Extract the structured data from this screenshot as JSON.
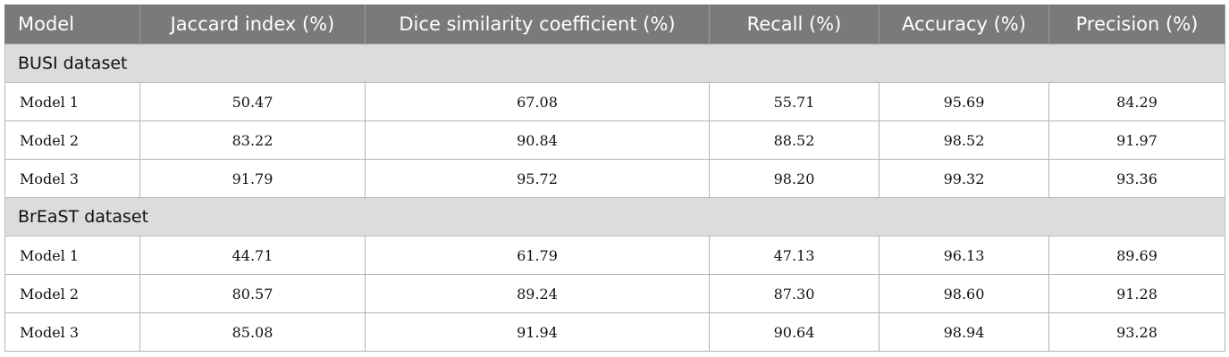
{
  "columns": [
    "Model",
    "Jaccard index (%)",
    "Dice similarity coefficient (%)",
    "Recall (%)",
    "Accuracy (%)",
    "Precision (%)"
  ],
  "sections": [
    {
      "title": "BUSI dataset",
      "rows": [
        [
          "Model 1",
          "50.47",
          "67.08",
          "55.71",
          "95.69",
          "84.29"
        ],
        [
          "Model 2",
          "83.22",
          "90.84",
          "88.52",
          "98.52",
          "91.97"
        ],
        [
          "Model 3",
          "91.79",
          "95.72",
          "98.20",
          "99.32",
          "93.36"
        ]
      ]
    },
    {
      "title": "BrEaST dataset",
      "rows": [
        [
          "Model 1",
          "44.71",
          "61.79",
          "47.13",
          "96.13",
          "89.69"
        ],
        [
          "Model 2",
          "80.57",
          "89.24",
          "87.30",
          "98.60",
          "91.28"
        ],
        [
          "Model 3",
          "85.08",
          "91.94",
          "90.64",
          "98.94",
          "93.28"
        ]
      ]
    }
  ],
  "colors": {
    "header_bg": "#7a7a7a",
    "section_bg": "#dcdcdc"
  }
}
